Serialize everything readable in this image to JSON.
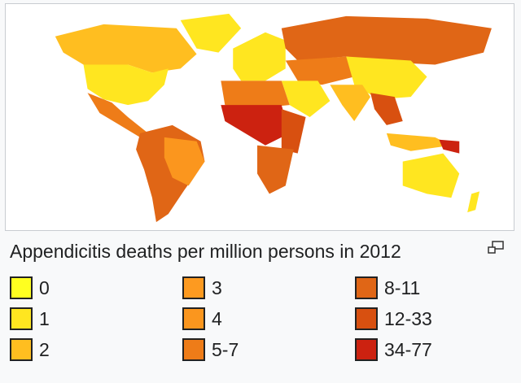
{
  "caption": "Appendicitis deaths per million persons in 2012",
  "legend": [
    {
      "label": "0",
      "color": "#ffff20"
    },
    {
      "label": "1",
      "color": "#ffe620"
    },
    {
      "label": "2",
      "color": "#ffbe20"
    },
    {
      "label": "3",
      "color": "#fd9a20"
    },
    {
      "label": "4",
      "color": "#fb961e"
    },
    {
      "label": "5-7",
      "color": "#ee7c18"
    },
    {
      "label": "8-11",
      "color": "#e06616"
    },
    {
      "label": "12-33",
      "color": "#d85010"
    },
    {
      "label": "34-77",
      "color": "#cc2210"
    }
  ],
  "icons": {
    "enlarge": "magnify-clip-icon"
  }
}
